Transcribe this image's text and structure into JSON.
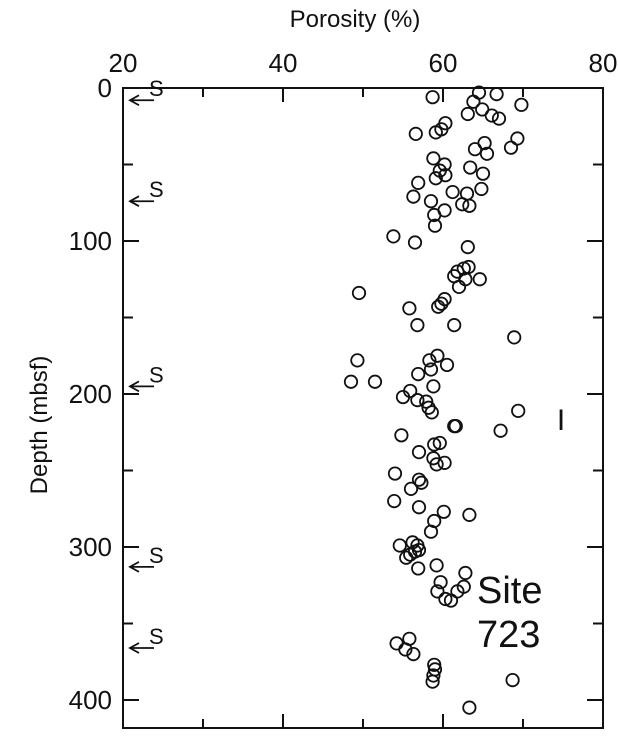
{
  "chart_data": {
    "type": "scatter",
    "title": "",
    "xlabel": "Porosity (%)",
    "ylabel": "Depth (mbsf)",
    "xlim": [
      20,
      80
    ],
    "ylim": [
      0,
      420
    ],
    "y_inverted": true,
    "x_axis_position": "top",
    "x_ticks": [
      20,
      40,
      60,
      80
    ],
    "x_tick_labels": [
      "20",
      "40",
      "60",
      "80"
    ],
    "x_minor_ticks": [
      30,
      50,
      70
    ],
    "y_ticks": [
      0,
      100,
      200,
      300,
      400
    ],
    "y_tick_labels": [
      "0",
      "100",
      "200",
      "300",
      "400"
    ],
    "y_minor_ticks": [
      50,
      150,
      250,
      350
    ],
    "grid": false,
    "annotations": [
      {
        "text": "Site",
        "x": 71,
        "y": 328
      },
      {
        "text": "723",
        "x": 71,
        "y": 358
      },
      {
        "text": "I",
        "x": 75.5,
        "y": 217
      }
    ],
    "s_markers": [
      {
        "text": "S",
        "depth": 8
      },
      {
        "text": "S",
        "depth": 74
      },
      {
        "text": "S",
        "depth": 195
      },
      {
        "text": "S",
        "depth": 313
      },
      {
        "text": "S",
        "depth": 366
      }
    ],
    "points": [
      {
        "x": 64.5,
        "y": 3
      },
      {
        "x": 66.7,
        "y": 4
      },
      {
        "x": 58.7,
        "y": 6
      },
      {
        "x": 63.8,
        "y": 9
      },
      {
        "x": 69.8,
        "y": 11
      },
      {
        "x": 64.9,
        "y": 14
      },
      {
        "x": 63.1,
        "y": 17
      },
      {
        "x": 66.1,
        "y": 18
      },
      {
        "x": 67.0,
        "y": 20
      },
      {
        "x": 60.3,
        "y": 23
      },
      {
        "x": 59.8,
        "y": 27
      },
      {
        "x": 59.1,
        "y": 29
      },
      {
        "x": 56.6,
        "y": 30
      },
      {
        "x": 69.3,
        "y": 33
      },
      {
        "x": 65.2,
        "y": 36
      },
      {
        "x": 64.0,
        "y": 40
      },
      {
        "x": 68.5,
        "y": 39
      },
      {
        "x": 65.5,
        "y": 43
      },
      {
        "x": 58.8,
        "y": 46
      },
      {
        "x": 60.2,
        "y": 50
      },
      {
        "x": 63.4,
        "y": 52
      },
      {
        "x": 59.6,
        "y": 54
      },
      {
        "x": 65.0,
        "y": 56
      },
      {
        "x": 60.3,
        "y": 57
      },
      {
        "x": 59.1,
        "y": 59
      },
      {
        "x": 56.9,
        "y": 62
      },
      {
        "x": 64.8,
        "y": 66
      },
      {
        "x": 61.2,
        "y": 68
      },
      {
        "x": 63.0,
        "y": 69
      },
      {
        "x": 56.3,
        "y": 71
      },
      {
        "x": 58.5,
        "y": 74
      },
      {
        "x": 62.4,
        "y": 76
      },
      {
        "x": 63.3,
        "y": 77
      },
      {
        "x": 60.2,
        "y": 80
      },
      {
        "x": 58.9,
        "y": 83
      },
      {
        "x": 59.0,
        "y": 90
      },
      {
        "x": 53.8,
        "y": 97
      },
      {
        "x": 56.5,
        "y": 101
      },
      {
        "x": 63.1,
        "y": 104
      },
      {
        "x": 63.2,
        "y": 117
      },
      {
        "x": 62.6,
        "y": 118
      },
      {
        "x": 61.8,
        "y": 120
      },
      {
        "x": 61.4,
        "y": 123
      },
      {
        "x": 62.8,
        "y": 125
      },
      {
        "x": 64.6,
        "y": 125
      },
      {
        "x": 62.0,
        "y": 130
      },
      {
        "x": 49.5,
        "y": 134
      },
      {
        "x": 60.2,
        "y": 138
      },
      {
        "x": 59.8,
        "y": 141
      },
      {
        "x": 59.4,
        "y": 143
      },
      {
        "x": 55.8,
        "y": 144
      },
      {
        "x": 56.8,
        "y": 155
      },
      {
        "x": 61.4,
        "y": 155
      },
      {
        "x": 68.9,
        "y": 163
      },
      {
        "x": 59.3,
        "y": 175
      },
      {
        "x": 58.3,
        "y": 178
      },
      {
        "x": 49.3,
        "y": 178
      },
      {
        "x": 60.5,
        "y": 181
      },
      {
        "x": 58.5,
        "y": 184
      },
      {
        "x": 56.9,
        "y": 187
      },
      {
        "x": 48.5,
        "y": 192
      },
      {
        "x": 51.5,
        "y": 192
      },
      {
        "x": 58.8,
        "y": 195
      },
      {
        "x": 55.9,
        "y": 198
      },
      {
        "x": 55.0,
        "y": 202
      },
      {
        "x": 56.8,
        "y": 204
      },
      {
        "x": 57.9,
        "y": 205
      },
      {
        "x": 58.2,
        "y": 209
      },
      {
        "x": 58.6,
        "y": 212
      },
      {
        "x": 69.4,
        "y": 211
      },
      {
        "x": 61.4,
        "y": 221
      },
      {
        "x": 61.6,
        "y": 221
      },
      {
        "x": 67.2,
        "y": 224
      },
      {
        "x": 54.8,
        "y": 227
      },
      {
        "x": 59.6,
        "y": 232
      },
      {
        "x": 58.9,
        "y": 233
      },
      {
        "x": 57.0,
        "y": 238
      },
      {
        "x": 58.8,
        "y": 242
      },
      {
        "x": 60.2,
        "y": 245
      },
      {
        "x": 59.2,
        "y": 246
      },
      {
        "x": 54.0,
        "y": 252
      },
      {
        "x": 57.0,
        "y": 256
      },
      {
        "x": 57.3,
        "y": 258
      },
      {
        "x": 56.0,
        "y": 262
      },
      {
        "x": 53.9,
        "y": 270
      },
      {
        "x": 57.0,
        "y": 274
      },
      {
        "x": 60.1,
        "y": 277
      },
      {
        "x": 63.3,
        "y": 279
      },
      {
        "x": 58.9,
        "y": 283
      },
      {
        "x": 58.5,
        "y": 290
      },
      {
        "x": 56.2,
        "y": 297
      },
      {
        "x": 54.6,
        "y": 299
      },
      {
        "x": 56.8,
        "y": 299
      },
      {
        "x": 57.0,
        "y": 302
      },
      {
        "x": 56.5,
        "y": 303
      },
      {
        "x": 55.9,
        "y": 305
      },
      {
        "x": 55.4,
        "y": 307
      },
      {
        "x": 56.9,
        "y": 314
      },
      {
        "x": 59.2,
        "y": 312
      },
      {
        "x": 62.8,
        "y": 317
      },
      {
        "x": 59.7,
        "y": 323
      },
      {
        "x": 62.6,
        "y": 326
      },
      {
        "x": 61.8,
        "y": 329
      },
      {
        "x": 59.3,
        "y": 329
      },
      {
        "x": 60.3,
        "y": 334
      },
      {
        "x": 61.0,
        "y": 335
      },
      {
        "x": 55.8,
        "y": 360
      },
      {
        "x": 54.2,
        "y": 363
      },
      {
        "x": 55.3,
        "y": 367
      },
      {
        "x": 56.3,
        "y": 370
      },
      {
        "x": 58.9,
        "y": 377
      },
      {
        "x": 59.0,
        "y": 380
      },
      {
        "x": 58.8,
        "y": 384
      },
      {
        "x": 58.7,
        "y": 388
      },
      {
        "x": 68.7,
        "y": 387
      },
      {
        "x": 63.3,
        "y": 405
      }
    ]
  }
}
